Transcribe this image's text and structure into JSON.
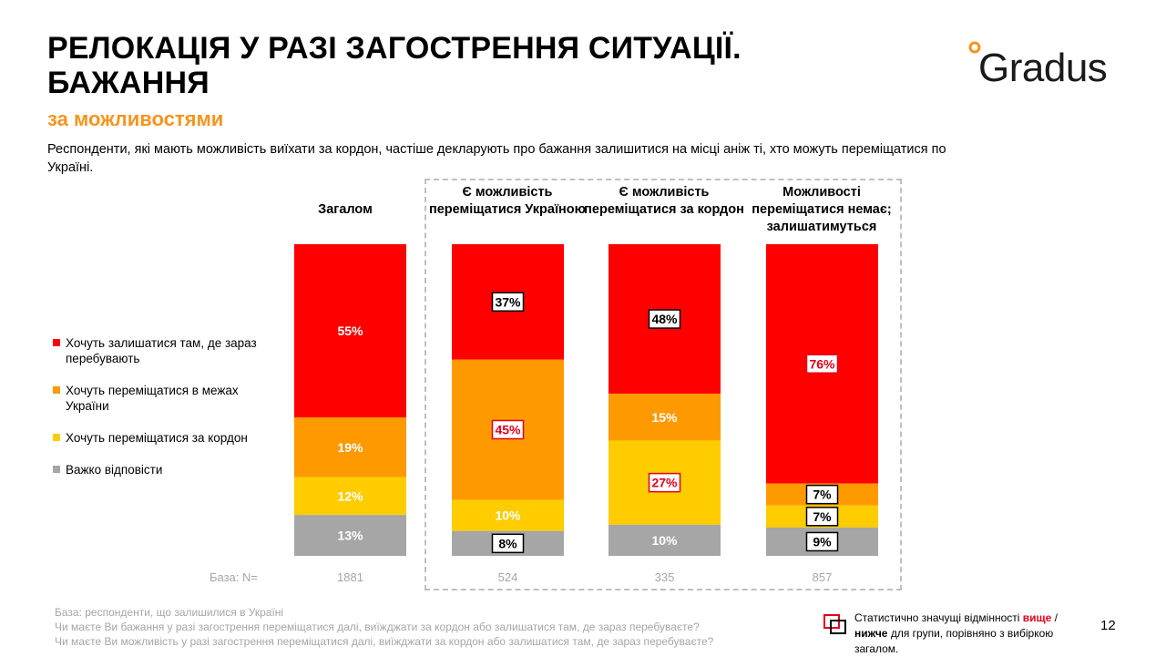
{
  "page": {
    "title_line1": "РЕЛОКАЦІЯ У РАЗІ ЗАГОСТРЕННЯ СИТУАЦІЇ.",
    "title_line2": "БАЖАННЯ",
    "subtitle": "за можливостями",
    "description": "Респонденти, які мають можливість виїхати за кордон, частіше декларують про бажання залишитися на місці аніж ті, хто можуть переміщатися по Україні.",
    "logo": "Gradus",
    "page_number": "12"
  },
  "colors": {
    "red": "#FF0000",
    "orange": "#FF9900",
    "yellow": "#FFCC00",
    "gray": "#A6A6A6",
    "accent": "#F7941D",
    "sig_red": "#E2001A"
  },
  "footnotes": {
    "line1": "База: респонденти, що залишилися в Україні",
    "line2": "Чи маєте Ви бажання у разі загострення переміщатися далі, виїжджати за кордон або залишатися там, де зараз перебуваєте?",
    "line3": "Чи маєте Ви можливість у разі загострення переміщатися далі, виїжджати за кордон або залишатися там, де зараз перебуваєте?"
  },
  "significance_legend": {
    "part1": "Статистично значущі відмінності ",
    "higher": "вище",
    "slash": " / ",
    "lower": "нижче",
    "part2": " для групи, порівняно з вибіркою загалом."
  },
  "chart_data": {
    "type": "bar",
    "stacked": true,
    "orientation": "vertical",
    "unit": "%",
    "categories": [
      "Загалом",
      "Є можливість переміщатися Україною",
      "Є можливість переміщатися за кордон",
      "Можливості переміщатися немає; залишатимуться"
    ],
    "series": [
      {
        "name": "Хочуть залишатися там, де зараз перебувають",
        "color_key": "red",
        "values": [
          55,
          37,
          48,
          76
        ],
        "labels": [
          "55%",
          "37%",
          "48%",
          "76%"
        ],
        "significance": [
          "none",
          "lower",
          "lower",
          "higher"
        ]
      },
      {
        "name": "Хочуть переміщатися в межах України",
        "color_key": "orange",
        "values": [
          19,
          45,
          15,
          7
        ],
        "labels": [
          "19%",
          "45%",
          "15%",
          "7%"
        ],
        "significance": [
          "none",
          "higher",
          "none",
          "lower"
        ]
      },
      {
        "name": "Хочуть переміщатися за кордон",
        "color_key": "yellow",
        "values": [
          12,
          10,
          27,
          7
        ],
        "labels": [
          "12%",
          "10%",
          "27%",
          "7%"
        ],
        "significance": [
          "none",
          "none",
          "higher",
          "lower"
        ]
      },
      {
        "name": "Важко відповісти",
        "color_key": "gray",
        "values": [
          13,
          8,
          10,
          9
        ],
        "labels": [
          "13%",
          "8%",
          "10%",
          "9%"
        ],
        "significance": [
          "none",
          "lower",
          "none",
          "lower"
        ]
      }
    ],
    "base_label": "База: N=",
    "bases": [
      "1881",
      "524",
      "335",
      "857"
    ],
    "ylim": [
      0,
      100
    ],
    "legend_position": "left"
  }
}
